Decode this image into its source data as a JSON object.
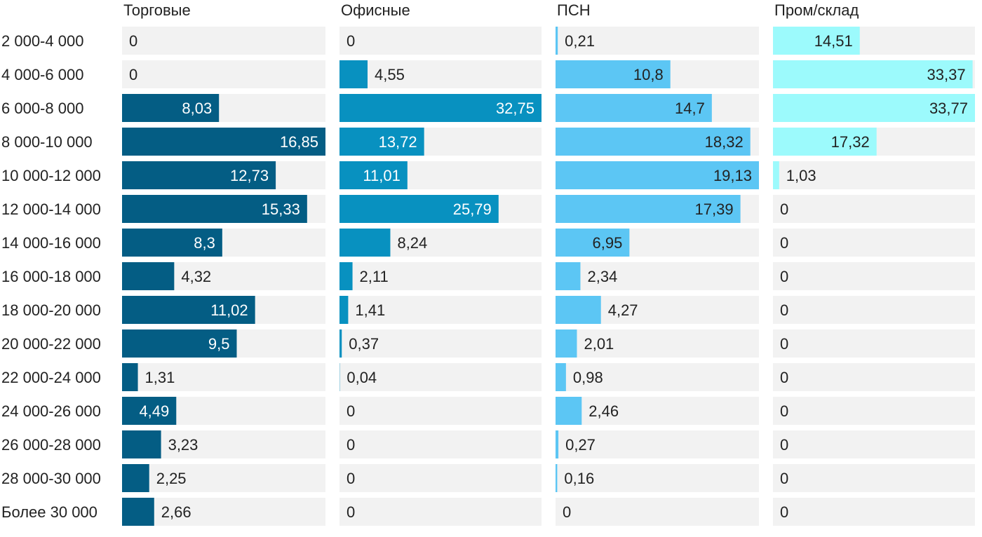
{
  "chart_data": {
    "type": "bar",
    "orientation": "horizontal",
    "layout": "small-multiples",
    "categories": [
      "2 000-4 000",
      "4 000-6 000",
      "6 000-8 000",
      "8 000-10 000",
      "10 000-12 000",
      "12 000-14 000",
      "14 000-16 000",
      "16 000-18 000",
      "18 000-20 000",
      "20 000-22 000",
      "22 000-24 000",
      "24 000-26 000",
      "26 000-28 000",
      "28 000-30 000",
      "Более 30 000"
    ],
    "series": [
      {
        "name": "Торговые",
        "color": "#045d84",
        "values": [
          0,
          0,
          8.03,
          16.85,
          12.73,
          15.33,
          8.3,
          4.32,
          11.02,
          9.5,
          1.31,
          4.49,
          3.23,
          2.25,
          2.66
        ],
        "labels": [
          "0",
          "0",
          "8,03",
          "16,85",
          "12,73",
          "15,33",
          "8,3",
          "4,32",
          "11,02",
          "9,5",
          "1,31",
          "4,49",
          "3,23",
          "2,25",
          "2,66"
        ],
        "xlim": [
          0,
          16.85
        ]
      },
      {
        "name": "Офисные",
        "color": "#0891c0",
        "values": [
          0,
          4.55,
          32.75,
          13.72,
          11.01,
          25.79,
          8.24,
          2.11,
          1.41,
          0.37,
          0.04,
          0,
          0,
          0,
          0
        ],
        "labels": [
          "0",
          "4,55",
          "32,75",
          "13,72",
          "11,01",
          "25,79",
          "8,24",
          "2,11",
          "1,41",
          "0,37",
          "0,04",
          "0",
          "0",
          "0",
          "0"
        ],
        "xlim": [
          0,
          32.75
        ]
      },
      {
        "name": "ПСН",
        "color": "#5cc6f4",
        "values": [
          0.21,
          10.8,
          14.7,
          18.32,
          19.13,
          17.39,
          6.95,
          2.34,
          4.27,
          2.01,
          0.98,
          2.46,
          0.27,
          0.16,
          0
        ],
        "labels": [
          "0,21",
          "10,8",
          "14,7",
          "18,32",
          "19,13",
          "17,39",
          "6,95",
          "2,34",
          "4,27",
          "2,01",
          "0,98",
          "2,46",
          "0,27",
          "0,16",
          "0"
        ],
        "xlim": [
          0,
          19.13
        ]
      },
      {
        "name": "Пром/склад",
        "color": "#9cfafc",
        "values": [
          14.51,
          33.37,
          33.77,
          17.32,
          1.03,
          0,
          0,
          0,
          0,
          0,
          0,
          0,
          0,
          0,
          0
        ],
        "labels": [
          "14,51",
          "33,37",
          "33,77",
          "17,32",
          "1,03",
          "0",
          "0",
          "0",
          "0",
          "0",
          "0",
          "0",
          "0",
          "0",
          "0"
        ],
        "xlim": [
          0,
          33.77
        ]
      }
    ],
    "title": "",
    "xlabel": "",
    "ylabel": "",
    "grid": false,
    "legend": "none"
  }
}
